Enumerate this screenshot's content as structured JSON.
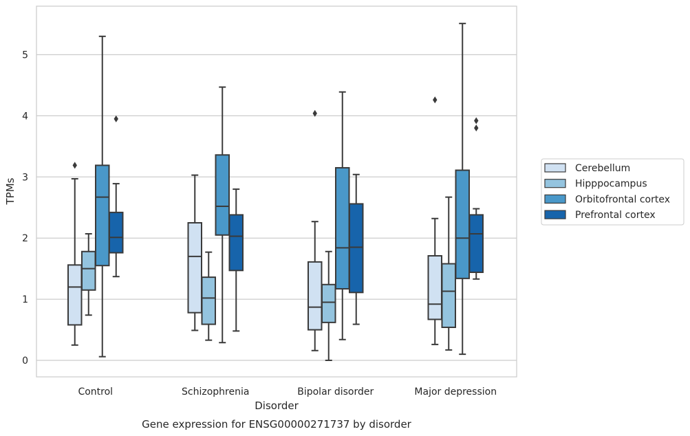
{
  "chart_data": {
    "type": "box",
    "caption": "Gene expression for ENSG00000271737 by disorder",
    "xlabel": "Disorder",
    "ylabel": "TPMs",
    "ylim": [
      -0.27,
      5.83
    ],
    "yticks": [
      0,
      1,
      2,
      3,
      4,
      5
    ],
    "grid": "horizontal",
    "legend_position": "right",
    "categories": [
      "Control",
      "Schizophrenia",
      "Bipolar disorder",
      "Major depression"
    ],
    "series": [
      {
        "name": "Cerebellum",
        "color": "#d0e1f2",
        "boxes": [
          {
            "whislo": 0.25,
            "q1": 0.58,
            "med": 1.2,
            "q3": 1.56,
            "whishi": 2.97,
            "fliers": [
              3.19
            ]
          },
          {
            "whislo": 0.49,
            "q1": 0.78,
            "med": 1.7,
            "q3": 2.25,
            "whishi": 3.03,
            "fliers": []
          },
          {
            "whislo": 0.16,
            "q1": 0.5,
            "med": 0.87,
            "q3": 1.61,
            "whishi": 2.27,
            "fliers": [
              4.04
            ]
          },
          {
            "whislo": 0.26,
            "q1": 0.67,
            "med": 0.92,
            "q3": 1.71,
            "whishi": 2.32,
            "fliers": [
              4.26
            ]
          }
        ]
      },
      {
        "name": "Hipppocampus",
        "color": "#94c4df",
        "boxes": [
          {
            "whislo": 0.74,
            "q1": 1.15,
            "med": 1.5,
            "q3": 1.78,
            "whishi": 2.07,
            "fliers": []
          },
          {
            "whislo": 0.33,
            "q1": 0.59,
            "med": 1.02,
            "q3": 1.36,
            "whishi": 1.77,
            "fliers": []
          },
          {
            "whislo": 0.0,
            "q1": 0.62,
            "med": 0.95,
            "q3": 1.24,
            "whishi": 1.78,
            "fliers": []
          },
          {
            "whislo": 0.17,
            "q1": 0.54,
            "med": 1.13,
            "q3": 1.58,
            "whishi": 2.67,
            "fliers": []
          }
        ]
      },
      {
        "name": "Orbitofrontal cortex",
        "color": "#4a98c9",
        "boxes": [
          {
            "whislo": 0.06,
            "q1": 1.55,
            "med": 2.67,
            "q3": 3.19,
            "whishi": 5.3,
            "fliers": []
          },
          {
            "whislo": 0.29,
            "q1": 2.05,
            "med": 2.52,
            "q3": 3.36,
            "whishi": 4.47,
            "fliers": []
          },
          {
            "whislo": 0.34,
            "q1": 1.17,
            "med": 1.84,
            "q3": 3.15,
            "whishi": 4.39,
            "fliers": []
          },
          {
            "whislo": 0.1,
            "q1": 1.34,
            "med": 2.0,
            "q3": 3.11,
            "whishi": 5.51,
            "fliers": []
          }
        ]
      },
      {
        "name": "Prefrontal cortex",
        "color": "#1764ab",
        "boxes": [
          {
            "whislo": 1.37,
            "q1": 1.76,
            "med": 2.01,
            "q3": 2.42,
            "whishi": 2.89,
            "fliers": [
              3.95
            ]
          },
          {
            "whislo": 0.48,
            "q1": 1.47,
            "med": 2.03,
            "q3": 2.38,
            "whishi": 2.8,
            "fliers": []
          },
          {
            "whislo": 0.59,
            "q1": 1.11,
            "med": 1.85,
            "q3": 2.56,
            "whishi": 3.04,
            "fliers": []
          },
          {
            "whislo": 1.33,
            "q1": 1.44,
            "med": 2.07,
            "q3": 2.38,
            "whishi": 2.48,
            "fliers": [
              3.8,
              3.92
            ]
          }
        ]
      }
    ]
  }
}
